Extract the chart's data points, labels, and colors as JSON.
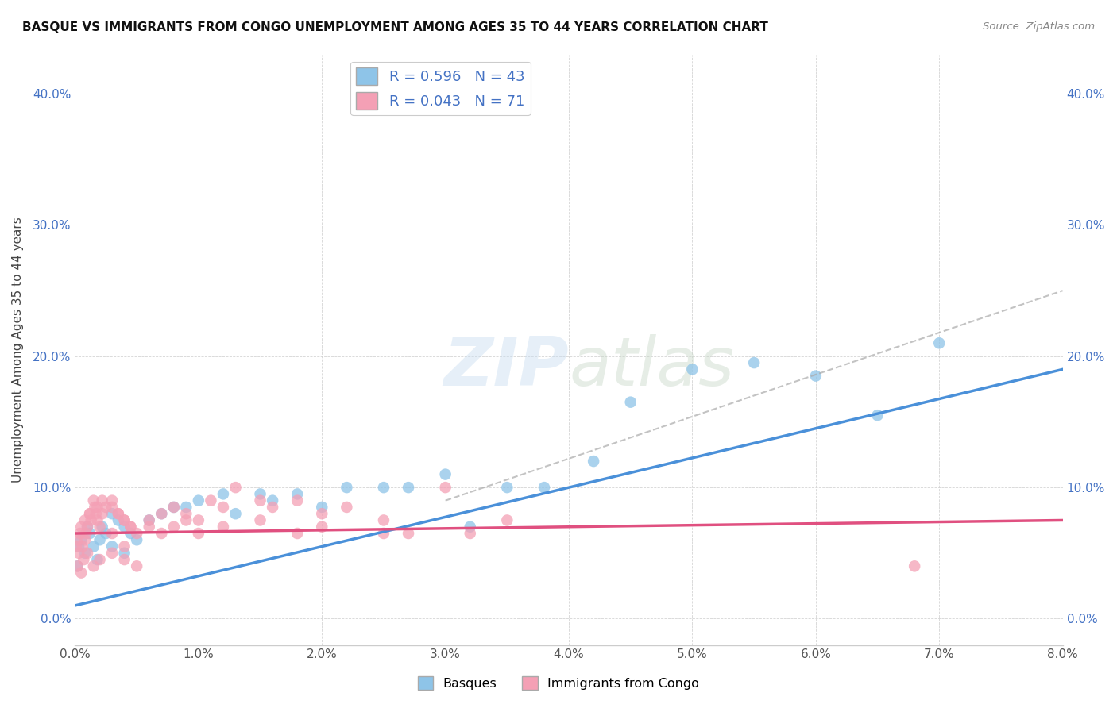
{
  "title": "BASQUE VS IMMIGRANTS FROM CONGO UNEMPLOYMENT AMONG AGES 35 TO 44 YEARS CORRELATION CHART",
  "source": "Source: ZipAtlas.com",
  "ylabel": "Unemployment Among Ages 35 to 44 years",
  "xlim": [
    0.0,
    0.08
  ],
  "ylim": [
    -0.02,
    0.43
  ],
  "xticks": [
    0.0,
    0.01,
    0.02,
    0.03,
    0.04,
    0.05,
    0.06,
    0.07,
    0.08
  ],
  "yticks": [
    0.0,
    0.1,
    0.2,
    0.3,
    0.4
  ],
  "background_color": "#ffffff",
  "legend_labels": [
    "R = 0.596   N = 43",
    "R = 0.043   N = 71"
  ],
  "legend_bottom_labels": [
    "Basques",
    "Immigrants from Congo"
  ],
  "blue_color": "#8ec4e8",
  "pink_color": "#f4a0b5",
  "blue_line_color": "#4a90d9",
  "pink_line_color": "#e05080",
  "dashed_line_color": "#aaaaaa",
  "basque_x": [
    0.0002,
    0.0003,
    0.0005,
    0.0008,
    0.001,
    0.0012,
    0.0015,
    0.0018,
    0.002,
    0.0022,
    0.0025,
    0.003,
    0.003,
    0.0035,
    0.004,
    0.004,
    0.0045,
    0.005,
    0.006,
    0.007,
    0.008,
    0.009,
    0.01,
    0.012,
    0.013,
    0.015,
    0.016,
    0.018,
    0.02,
    0.022,
    0.025,
    0.027,
    0.03,
    0.032,
    0.035,
    0.038,
    0.042,
    0.045,
    0.05,
    0.055,
    0.06,
    0.065,
    0.07
  ],
  "basque_y": [
    0.04,
    0.055,
    0.06,
    0.05,
    0.07,
    0.065,
    0.055,
    0.045,
    0.06,
    0.07,
    0.065,
    0.08,
    0.055,
    0.075,
    0.07,
    0.05,
    0.065,
    0.06,
    0.075,
    0.08,
    0.085,
    0.085,
    0.09,
    0.095,
    0.08,
    0.095,
    0.09,
    0.095,
    0.085,
    0.1,
    0.1,
    0.1,
    0.11,
    0.07,
    0.1,
    0.1,
    0.12,
    0.165,
    0.19,
    0.195,
    0.185,
    0.155,
    0.21
  ],
  "congo_x": [
    0.0001,
    0.0002,
    0.0003,
    0.0004,
    0.0005,
    0.0006,
    0.0007,
    0.0008,
    0.0009,
    0.001,
    0.0012,
    0.0013,
    0.0015,
    0.0016,
    0.0017,
    0.0018,
    0.002,
    0.0022,
    0.0025,
    0.003,
    0.003,
    0.0035,
    0.004,
    0.004,
    0.0045,
    0.005,
    0.006,
    0.007,
    0.008,
    0.009,
    0.01,
    0.011,
    0.012,
    0.013,
    0.015,
    0.016,
    0.018,
    0.02,
    0.022,
    0.025,
    0.027,
    0.03,
    0.032,
    0.035,
    0.0002,
    0.0005,
    0.001,
    0.0015,
    0.002,
    0.003,
    0.004,
    0.005,
    0.0008,
    0.0012,
    0.0018,
    0.0022,
    0.003,
    0.0035,
    0.004,
    0.0045,
    0.006,
    0.007,
    0.008,
    0.009,
    0.01,
    0.012,
    0.015,
    0.018,
    0.02,
    0.025,
    0.068
  ],
  "congo_y": [
    0.055,
    0.06,
    0.05,
    0.065,
    0.07,
    0.055,
    0.045,
    0.06,
    0.065,
    0.07,
    0.08,
    0.075,
    0.09,
    0.085,
    0.08,
    0.075,
    0.07,
    0.08,
    0.085,
    0.09,
    0.065,
    0.08,
    0.075,
    0.055,
    0.07,
    0.065,
    0.075,
    0.08,
    0.085,
    0.08,
    0.075,
    0.09,
    0.085,
    0.1,
    0.09,
    0.085,
    0.09,
    0.08,
    0.085,
    0.075,
    0.065,
    0.1,
    0.065,
    0.075,
    0.04,
    0.035,
    0.05,
    0.04,
    0.045,
    0.05,
    0.045,
    0.04,
    0.075,
    0.08,
    0.085,
    0.09,
    0.085,
    0.08,
    0.075,
    0.07,
    0.07,
    0.065,
    0.07,
    0.075,
    0.065,
    0.07,
    0.075,
    0.065,
    0.07,
    0.065,
    0.04
  ]
}
